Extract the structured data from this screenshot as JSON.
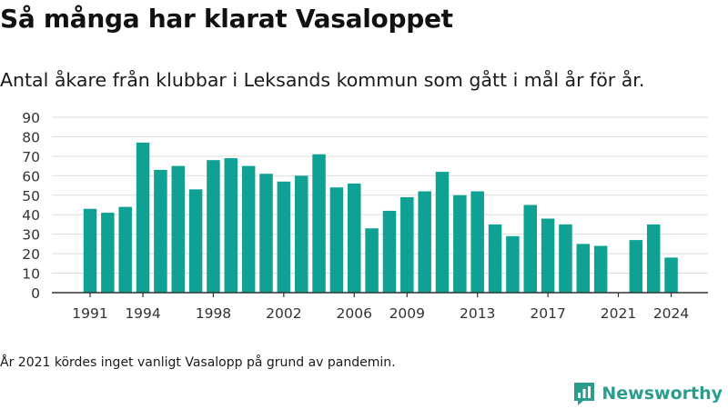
{
  "header": {
    "title": "Så många har klarat Vasaloppet",
    "subtitle": "Antal åkare från klubbar i Leksands kommun som gått i mål år för år."
  },
  "note": "År 2021 kördes inget vanligt Vasalopp på grund av pandemin.",
  "brand": {
    "name": "Newsworthy",
    "icon": "bar-chart-logo-icon"
  },
  "colors": {
    "bar": "#0fa294",
    "grid": "#dddddd",
    "axis": "#333333",
    "brand": "#2a9d8f"
  },
  "chart_data": {
    "type": "bar",
    "title": "",
    "xlabel": "",
    "ylabel": "",
    "ylim": [
      0,
      90
    ],
    "yticks": [
      0,
      10,
      20,
      30,
      40,
      50,
      60,
      70,
      80,
      90
    ],
    "xticks": [
      1991,
      1994,
      1998,
      2002,
      2006,
      2009,
      2013,
      2017,
      2021,
      2024
    ],
    "grid": true,
    "legend": "none",
    "categories": [
      1991,
      1992,
      1993,
      1994,
      1995,
      1996,
      1997,
      1998,
      1999,
      2000,
      2001,
      2002,
      2003,
      2004,
      2005,
      2006,
      2007,
      2008,
      2009,
      2010,
      2011,
      2012,
      2013,
      2014,
      2015,
      2016,
      2017,
      2018,
      2019,
      2020,
      2021,
      2022,
      2023,
      2024
    ],
    "values": [
      43,
      41,
      44,
      77,
      63,
      65,
      53,
      68,
      69,
      65,
      61,
      57,
      60,
      71,
      54,
      56,
      33,
      42,
      49,
      52,
      62,
      50,
      52,
      35,
      29,
      45,
      38,
      35,
      25,
      24,
      null,
      27,
      35,
      18
    ]
  }
}
